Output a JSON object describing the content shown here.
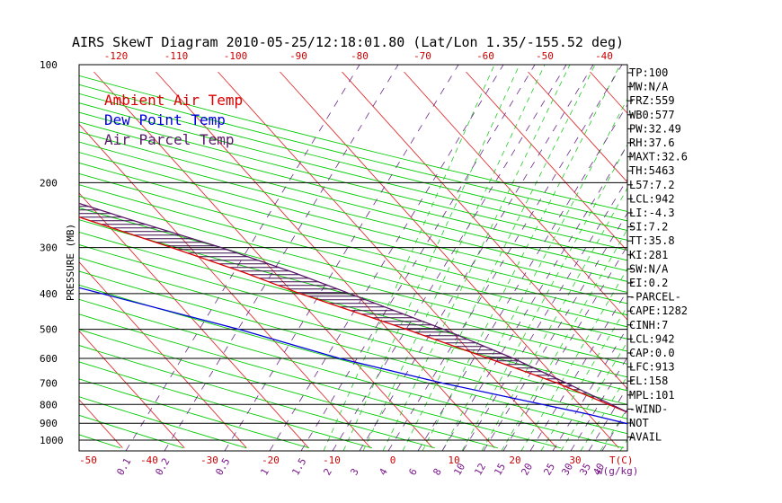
{
  "title": "AIRS SkewT Diagram 2010-05-25/12:18:01.80 (Lat/Lon 1.35/-155.52 deg)",
  "chart_data": {
    "type": "line",
    "ylabel": "PRESSURE (MB)",
    "xlabel_bottom": "T(C)",
    "xlabel_bottom2": "w(g/kg)",
    "pressure_scale": "log",
    "ylim": [
      1050,
      100
    ],
    "pressure_ticks": [
      100,
      200,
      300,
      400,
      500,
      600,
      700,
      800,
      900,
      1000
    ],
    "isobars": [
      200,
      300,
      400,
      500,
      600,
      700,
      800,
      900,
      1000
    ],
    "top_temp_ticks": [
      -120,
      -110,
      -100,
      -90,
      -80,
      -70,
      -60,
      -50,
      -40
    ],
    "bottom_temp_ticks": [
      -50,
      -40,
      -30,
      -20,
      -10,
      0,
      10,
      20,
      30
    ],
    "mixing_ratio_labels": [
      "0.1",
      "0.2",
      "0.5",
      "1",
      "1.5",
      "2",
      "3",
      "4",
      "6",
      "8",
      "10",
      "12",
      "15",
      "20",
      "25",
      "30",
      "35",
      "40"
    ],
    "legend": [
      {
        "label": "Ambient Air Temp",
        "color": "#dd0000"
      },
      {
        "label": "Dew Point Temp",
        "color": "#0000dd"
      },
      {
        "label": "Air Parcel Temp",
        "color": "#5a1a6a"
      }
    ],
    "series": [
      {
        "name": "Ambient Air Temp",
        "color": "#dd0000",
        "points": [
          [
            100,
            -82
          ],
          [
            150,
            -67
          ],
          [
            200,
            -54
          ],
          [
            250,
            -43
          ],
          [
            300,
            -33
          ],
          [
            350,
            -25
          ],
          [
            400,
            -19
          ],
          [
            500,
            -7
          ],
          [
            600,
            2
          ],
          [
            700,
            9.5
          ],
          [
            850,
            17
          ],
          [
            925,
            21
          ],
          [
            1000,
            26
          ]
        ]
      },
      {
        "name": "Dew Point Temp",
        "color": "#0000dd",
        "points": [
          [
            100,
            -89
          ],
          [
            150,
            -82
          ],
          [
            200,
            -78
          ],
          [
            250,
            -77
          ],
          [
            300,
            -73
          ],
          [
            400,
            -51
          ],
          [
            500,
            -34
          ],
          [
            600,
            -22
          ],
          [
            700,
            -9
          ],
          [
            850,
            10
          ],
          [
            925,
            17
          ],
          [
            1000,
            24
          ]
        ]
      },
      {
        "name": "Air Parcel Temp",
        "color": "#5a1a6a",
        "points": [
          [
            100,
            -92
          ],
          [
            150,
            -68
          ],
          [
            200,
            -49
          ],
          [
            250,
            -36
          ],
          [
            300,
            -25
          ],
          [
            350,
            -17
          ],
          [
            400,
            -11
          ],
          [
            500,
            -1
          ],
          [
            600,
            6
          ],
          [
            700,
            11
          ],
          [
            850,
            17
          ],
          [
            925,
            21
          ],
          [
            1000,
            26
          ]
        ]
      }
    ],
    "indices": [
      "TP:100",
      "MW:N/A",
      "FRZ:559",
      "WB0:577",
      "PW:32.49",
      "RH:37.6",
      "MAXT:32.6",
      "TH:5463",
      "L57:7.2",
      "LCL:942",
      "LI:-4.3",
      "SI:7.2",
      "TT:35.8",
      "KI:281",
      "SW:N/A",
      "EI:0.2",
      "-PARCEL-",
      "CAPE:1282",
      "CINH:7",
      "LCL:942",
      "CAP:0.0",
      "LFC:913",
      "EL:158",
      "MPL:101",
      "-WIND-",
      "NOT",
      "AVAIL"
    ]
  }
}
